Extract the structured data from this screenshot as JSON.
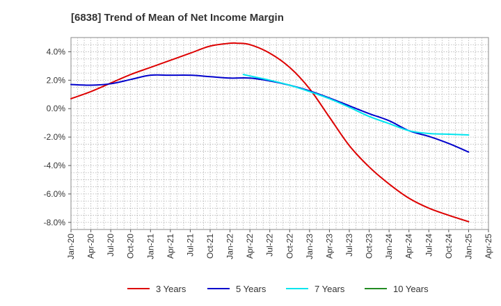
{
  "chart_data": {
    "type": "line",
    "title": "[6838]  Trend of Mean of Net Income Margin",
    "xlabel": "",
    "ylabel": "",
    "x_ticks": [
      "Jan-20",
      "Apr-20",
      "Jul-20",
      "Oct-20",
      "Jan-21",
      "Apr-21",
      "Jul-21",
      "Oct-21",
      "Jan-22",
      "Apr-22",
      "Jul-22",
      "Oct-22",
      "Jan-23",
      "Apr-23",
      "Jul-23",
      "Oct-23",
      "Jan-24",
      "Apr-24",
      "Jul-24",
      "Oct-24",
      "Jan-25",
      "Apr-25"
    ],
    "y_ticks": [
      "4.0%",
      "2.0%",
      "0.0%",
      "-2.0%",
      "-4.0%",
      "-6.0%",
      "-8.0%"
    ],
    "y_tick_values": [
      4,
      2,
      0,
      -2,
      -4,
      -6,
      -8
    ],
    "ylim": [
      -8.5,
      5.0
    ],
    "grid": true,
    "legend_position": "bottom",
    "series": [
      {
        "name": "3 Years",
        "color": "#dd0000",
        "x": [
          "2020-01",
          "2020-04",
          "2020-07",
          "2020-10",
          "2021-01",
          "2021-04",
          "2021-07",
          "2021-10",
          "2022-01",
          "2022-02",
          "2022-04",
          "2022-07",
          "2022-10",
          "2023-01",
          "2023-04",
          "2023-07",
          "2023-10",
          "2024-01",
          "2024-04",
          "2024-07",
          "2024-10",
          "2025-01"
        ],
        "values": [
          0.7,
          1.2,
          1.8,
          2.4,
          2.9,
          3.4,
          3.9,
          4.4,
          4.6,
          4.6,
          4.5,
          3.9,
          2.9,
          1.4,
          -0.6,
          -2.6,
          -4.1,
          -5.3,
          -6.3,
          -7.0,
          -7.5,
          -7.95
        ]
      },
      {
        "name": "5 Years",
        "color": "#0000cc",
        "x": [
          "2020-01",
          "2020-04",
          "2020-07",
          "2020-10",
          "2021-01",
          "2021-04",
          "2021-07",
          "2021-10",
          "2022-01",
          "2022-04",
          "2022-07",
          "2022-10",
          "2023-01",
          "2023-04",
          "2023-07",
          "2023-10",
          "2024-01",
          "2024-04",
          "2024-07",
          "2024-10",
          "2025-01"
        ],
        "values": [
          1.7,
          1.65,
          1.75,
          2.05,
          2.35,
          2.35,
          2.35,
          2.25,
          2.15,
          2.15,
          1.95,
          1.65,
          1.25,
          0.75,
          0.2,
          -0.35,
          -0.85,
          -1.55,
          -1.95,
          -2.45,
          -3.05
        ]
      },
      {
        "name": "7 Years",
        "color": "#00e5ee",
        "x": [
          "2022-03",
          "2022-04",
          "2022-07",
          "2022-10",
          "2023-01",
          "2023-04",
          "2023-07",
          "2023-10",
          "2024-01",
          "2024-04",
          "2024-07",
          "2024-10",
          "2025-01"
        ],
        "values": [
          2.4,
          2.3,
          2.0,
          1.65,
          1.2,
          0.7,
          0.1,
          -0.55,
          -1.05,
          -1.55,
          -1.75,
          -1.8,
          -1.85
        ]
      },
      {
        "name": "10 Years",
        "color": "#228b22",
        "x": [],
        "values": []
      }
    ]
  }
}
